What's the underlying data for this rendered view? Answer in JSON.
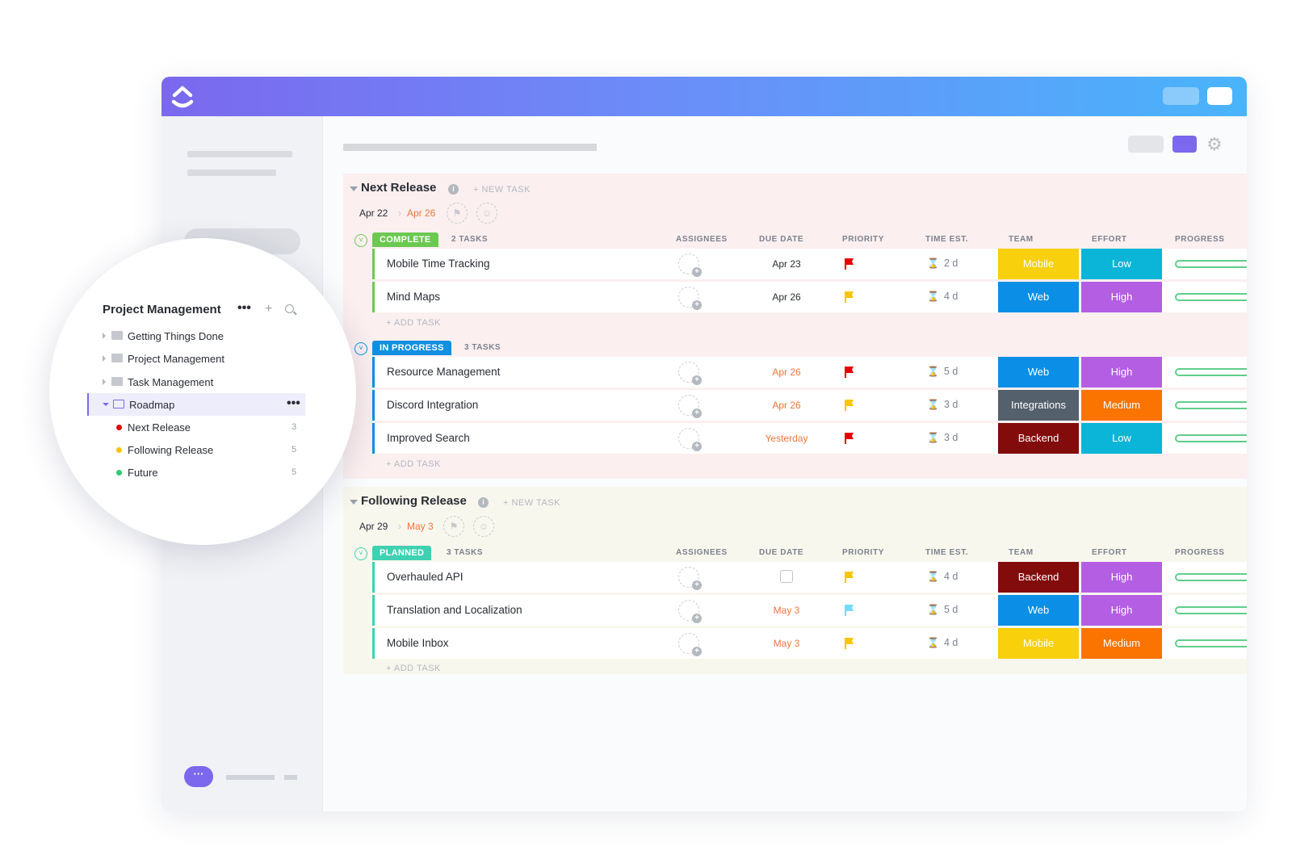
{
  "colors": {
    "accent": "#7b68ee",
    "complete": "#6bc950",
    "in_progress": "#1090e0",
    "planned": "#3fd1b1",
    "flag_red": "#e50000",
    "flag_yellow": "#f8c500",
    "flag_blue": "#6fddff"
  },
  "sidebar_zoom": {
    "title": "Project Management",
    "more": "•••",
    "add": "+",
    "items": [
      {
        "label": "Getting Things Done"
      },
      {
        "label": "Project Management"
      },
      {
        "label": "Task Management"
      },
      {
        "label": "Roadmap",
        "more": "•••"
      }
    ],
    "lists": [
      {
        "label": "Next Release",
        "count": "3",
        "color": "#e50000"
      },
      {
        "label": "Following Release",
        "count": "5",
        "color": "#f8c500"
      },
      {
        "label": "Future",
        "count": "5",
        "color": "#2ecd6f"
      }
    ]
  },
  "columns": [
    "ASSIGNEES",
    "DUE DATE",
    "PRIORITY",
    "TIME EST.",
    "TEAM",
    "EFFORT",
    "PROGRESS"
  ],
  "sections": [
    {
      "title": "Next Release",
      "info": "i",
      "new_task": "+ NEW TASK",
      "date_start": "Apr 22",
      "date_sep": "›",
      "date_end": "Apr 26",
      "groups": [
        {
          "status": "COMPLETE",
          "count": "2 TASKS",
          "add_task": "+ ADD TASK",
          "tasks": [
            {
              "name": "Mobile Time Tracking",
              "due": "Apr 23",
              "due_color": "#292d34",
              "priority": "#e50000",
              "time": "2 d",
              "team": "Mobile",
              "team_color": "#f8d00b",
              "effort": "Low",
              "effort_color": "#0bb5d8"
            },
            {
              "name": "Mind Maps",
              "due": "Apr 26",
              "due_color": "#292d34",
              "priority": "#f8c500",
              "time": "4 d",
              "team": "Web",
              "team_color": "#0b8fe6",
              "effort": "High",
              "effort_color": "#b45ee3"
            }
          ]
        },
        {
          "status": "IN PROGRESS",
          "count": "3 TASKS",
          "add_task": "+ ADD TASK",
          "tasks": [
            {
              "name": "Resource Management",
              "due": "Apr 26",
              "due_color": "#f0763c",
              "priority": "#e50000",
              "time": "5 d",
              "team": "Web",
              "team_color": "#0b8fe6",
              "effort": "High",
              "effort_color": "#b45ee3"
            },
            {
              "name": "Discord Integration",
              "due": "Apr 26",
              "due_color": "#f0763c",
              "priority": "#f8c500",
              "time": "3 d",
              "team": "Integrations",
              "team_color": "#54606c",
              "effort": "Medium",
              "effort_color": "#fb7300"
            },
            {
              "name": "Improved Search",
              "due": "Yesterday",
              "due_color": "#f0763c",
              "priority": "#e50000",
              "time": "3 d",
              "team": "Backend",
              "team_color": "#820b0b",
              "effort": "Low",
              "effort_color": "#0bb5d8"
            }
          ]
        }
      ]
    },
    {
      "title": "Following Release",
      "info": "i",
      "new_task": "+ NEW TASK",
      "date_start": "Apr 29",
      "date_sep": "›",
      "date_end": "May 3",
      "groups": [
        {
          "status": "PLANNED",
          "count": "3 TASKS",
          "add_task": "+ ADD TASK",
          "tasks": [
            {
              "name": "Overhauled API",
              "due": "",
              "due_color": "#292d34",
              "priority": "#f8c500",
              "time": "4 d",
              "team": "Backend",
              "team_color": "#820b0b",
              "effort": "High",
              "effort_color": "#b45ee3"
            },
            {
              "name": "Translation and Localization",
              "due": "May 3",
              "due_color": "#f0763c",
              "priority": "#6fddff",
              "time": "5 d",
              "team": "Web",
              "team_color": "#0b8fe6",
              "effort": "High",
              "effort_color": "#b45ee3"
            },
            {
              "name": "Mobile Inbox",
              "due": "May 3",
              "due_color": "#f0763c",
              "priority": "#f8c500",
              "time": "4 d",
              "team": "Mobile",
              "team_color": "#f8d00b",
              "effort": "Medium",
              "effort_color": "#fb7300"
            }
          ]
        }
      ]
    }
  ],
  "chat": "···"
}
